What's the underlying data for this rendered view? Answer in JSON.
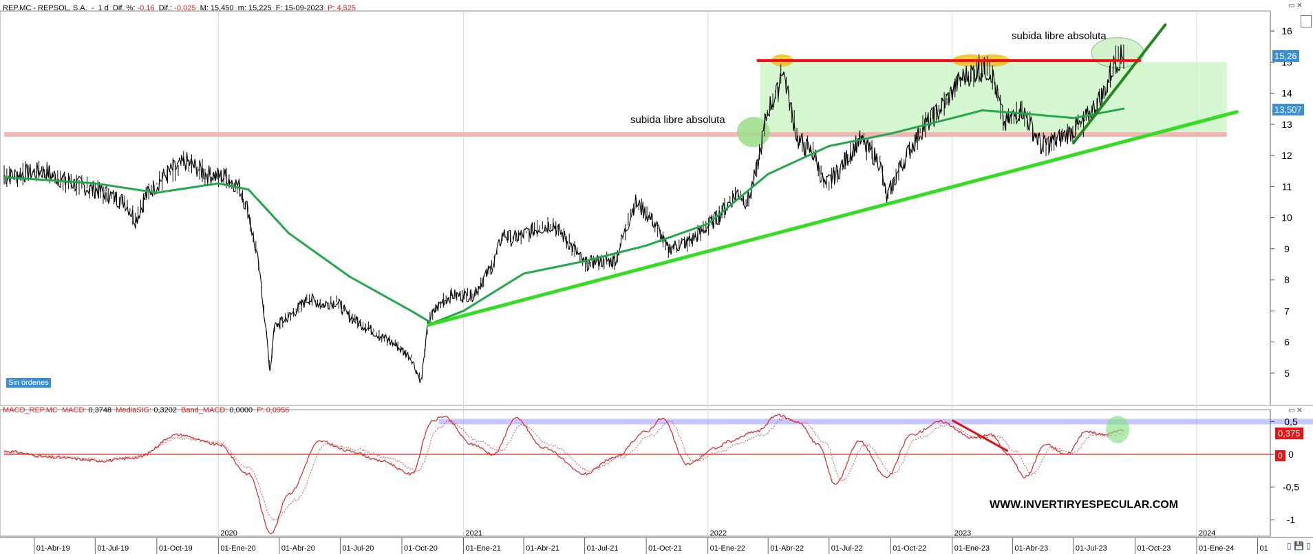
{
  "main_header": {
    "symbol": "REP.MC - REPSOL, S.A.",
    "interval": "1 d",
    "dif_pct_label": "Dif. %:",
    "dif_pct": "-0,16",
    "dif_label": "Dif.:",
    "dif": "-0,025",
    "max_label": "M:",
    "max": "15,450",
    "min_label": "m:",
    "min": "15,225",
    "date_label": "F:",
    "date": "15-09-2023",
    "p_label": "P:",
    "p": "4,525"
  },
  "macd_header": {
    "name": "MACD_REP.MC",
    "macd_label": "MACD:",
    "macd": "0,3748",
    "signal_label": "MediaSIG:",
    "signal": "0,3202",
    "band_label": "Band_MACD:",
    "band": "0,0000",
    "p_label": "P:",
    "p": "0,0956"
  },
  "badges": {
    "sin_ordenes": "Sin órdenes",
    "price_current": "15,26",
    "price_ma": "13,507",
    "macd_current": "0,375",
    "macd_zero": "0"
  },
  "annotations": {
    "left": "subida libre absoluta",
    "right": "subida libre absoluta",
    "website": "WWW.INVERTIRYESPECULAR.COM"
  },
  "colors": {
    "price": "#000000",
    "sma": "#22a84a",
    "support_trend": "#33dd22",
    "steep_trend": "#1e8a1e",
    "resistance": "#ee1111",
    "support_band": "#f5aaaa",
    "range_box": "#c8f5c0",
    "macd_line": "#dd2222",
    "macd_band": "#9999ff",
    "badge_blue": "#3a8fd9",
    "badge_red": "#ee1111"
  },
  "chart_data": [
    {
      "type": "line",
      "subtype": "candlestick",
      "ylim": [
        4,
        16.6
      ],
      "yticks": [
        5,
        6,
        7,
        8,
        9,
        10,
        11,
        12,
        13,
        14,
        15,
        16
      ],
      "ytick_labels": [
        "5",
        "6",
        "7",
        "8",
        "9",
        "10",
        "11",
        "12",
        "13",
        "14",
        "15",
        "16"
      ],
      "xticks": [
        {
          "date": "2019-04-01",
          "label": "01-Abr-19"
        },
        {
          "date": "2019-07-01",
          "label": "01-Jul-19"
        },
        {
          "date": "2019-10-01",
          "label": "01-Oct-19"
        },
        {
          "date": "2020-01-01",
          "label": "01-Ene-20"
        },
        {
          "date": "2020-04-01",
          "label": "01-Abr-20"
        },
        {
          "date": "2020-07-01",
          "label": "01-Jul-20"
        },
        {
          "date": "2020-10-01",
          "label": "01-Oct-20"
        },
        {
          "date": "2021-01-01",
          "label": "01-Ene-21"
        },
        {
          "date": "2021-04-01",
          "label": "01-Abr-21"
        },
        {
          "date": "2021-07-01",
          "label": "01-Jul-21"
        },
        {
          "date": "2021-10-01",
          "label": "01-Oct-21"
        },
        {
          "date": "2022-01-01",
          "label": "01-Ene-22"
        },
        {
          "date": "2022-04-01",
          "label": "01-Abr-22"
        },
        {
          "date": "2022-07-01",
          "label": "01-Jul-22"
        },
        {
          "date": "2022-10-01",
          "label": "01-Oct-22"
        },
        {
          "date": "2023-01-01",
          "label": "01-Ene-23"
        },
        {
          "date": "2023-04-01",
          "label": "01-Abr-23"
        },
        {
          "date": "2023-07-01",
          "label": "01-Jul-23"
        },
        {
          "date": "2023-10-01",
          "label": "01-Oct-23"
        },
        {
          "date": "2024-01-01",
          "label": "01-Ene-24"
        },
        {
          "date": "2024-04-01",
          "label": "01"
        }
      ],
      "year_marks": [
        {
          "date": "2020-01-01",
          "label": "2020"
        },
        {
          "date": "2021-01-01",
          "label": "2021"
        },
        {
          "date": "2022-01-01",
          "label": "2022"
        },
        {
          "date": "2023-01-01",
          "label": "2023"
        },
        {
          "date": "2024-01-01",
          "label": "2024"
        }
      ],
      "x_range": [
        "2019-02-15",
        "2024-04-20"
      ],
      "series": [
        {
          "style": "close",
          "x": [
            "2019-02-15",
            "2019-03-15",
            "2019-04-15",
            "2019-05-15",
            "2019-06-15",
            "2019-07-15",
            "2019-08-15",
            "2019-08-31",
            "2019-09-15",
            "2019-10-15",
            "2019-11-15",
            "2019-12-15",
            "2020-01-15",
            "2020-02-01",
            "2020-02-15",
            "2020-03-01",
            "2020-03-12",
            "2020-03-18",
            "2020-03-25",
            "2020-04-15",
            "2020-05-15",
            "2020-06-05",
            "2020-06-25",
            "2020-07-15",
            "2020-08-15",
            "2020-09-15",
            "2020-10-15",
            "2020-10-30",
            "2020-11-10",
            "2020-11-30",
            "2020-12-15",
            "2021-01-15",
            "2021-02-15",
            "2021-03-01",
            "2021-03-15",
            "2021-04-15",
            "2021-05-15",
            "2021-06-15",
            "2021-07-01",
            "2021-07-20",
            "2021-08-15",
            "2021-09-15",
            "2021-10-15",
            "2021-11-01",
            "2021-11-30",
            "2021-12-15",
            "2022-01-15",
            "2022-02-15",
            "2022-03-01",
            "2022-03-15",
            "2022-04-01",
            "2022-04-15",
            "2022-04-22",
            "2022-05-15",
            "2022-06-10",
            "2022-06-25",
            "2022-07-15",
            "2022-08-15",
            "2022-09-15",
            "2022-09-25",
            "2022-10-15",
            "2022-11-15",
            "2022-12-15",
            "2023-01-15",
            "2023-02-15",
            "2023-03-01",
            "2023-03-20",
            "2023-04-15",
            "2023-05-15",
            "2023-06-15",
            "2023-07-15",
            "2023-08-15",
            "2023-09-01",
            "2023-09-15"
          ],
          "values": [
            11.3,
            11.4,
            11.5,
            11.2,
            11.0,
            10.8,
            10.5,
            9.9,
            10.7,
            11.4,
            11.8,
            11.4,
            11.3,
            11.0,
            10.2,
            8.5,
            6.5,
            5.0,
            6.5,
            6.8,
            7.4,
            7.2,
            7.3,
            6.8,
            6.4,
            6.0,
            5.5,
            4.7,
            6.7,
            7.3,
            7.5,
            7.5,
            8.5,
            9.5,
            9.3,
            9.6,
            9.8,
            9.0,
            8.5,
            8.6,
            8.6,
            10.5,
            9.8,
            9.0,
            9.2,
            9.4,
            10.0,
            10.8,
            10.5,
            11.5,
            13.5,
            14.0,
            14.9,
            12.5,
            12.0,
            11.0,
            11.5,
            12.5,
            11.8,
            10.6,
            11.6,
            12.8,
            13.5,
            14.5,
            14.8,
            14.7,
            13.0,
            13.5,
            12.3,
            12.6,
            13.0,
            14.0,
            15.0,
            15.26
          ]
        },
        {
          "name": "SMA",
          "style": "moving-average",
          "x": [
            "2019-02-15",
            "2019-07-01",
            "2019-10-01",
            "2020-01-01",
            "2020-02-15",
            "2020-04-15",
            "2020-07-15",
            "2020-10-15",
            "2020-11-15",
            "2021-01-01",
            "2021-04-01",
            "2021-07-01",
            "2021-10-01",
            "2022-01-01",
            "2022-04-01",
            "2022-07-01",
            "2022-10-01",
            "2023-01-01",
            "2023-02-15",
            "2023-04-15",
            "2023-07-01",
            "2023-09-15"
          ],
          "values": [
            11.3,
            11.1,
            10.8,
            11.1,
            10.9,
            9.5,
            8.1,
            7.0,
            6.6,
            7.0,
            8.2,
            8.6,
            9.1,
            9.8,
            11.4,
            12.3,
            12.7,
            13.2,
            13.45,
            13.35,
            13.2,
            13.51
          ]
        }
      ],
      "overlays": {
        "support_trendline": {
          "from": [
            "2020-11-10",
            6.55
          ],
          "to": [
            "2024-03-01",
            13.4
          ]
        },
        "steep_trendline": {
          "from": [
            "2023-07-01",
            12.4
          ],
          "to": [
            "2023-11-15",
            16.2
          ]
        },
        "resistance_line": {
          "from": [
            "2022-03-15",
            15.05
          ],
          "to": [
            "2023-10-10",
            15.05
          ]
        },
        "support_band": {
          "from": "2019-02-15",
          "to": "2024-02-15",
          "y": [
            12.6,
            12.75
          ]
        },
        "range_box": {
          "from": "2022-03-20",
          "to": "2024-02-15",
          "y": [
            12.6,
            15.0
          ]
        },
        "highlight_ellipses": [
          {
            "date": "2022-04-22",
            "y": 15.05,
            "fill": "#f0c020"
          },
          {
            "date": "2023-01-28",
            "y": 15.05,
            "fill": "#f0c020"
          },
          {
            "date": "2023-03-01",
            "y": 15.05,
            "fill": "#f0c020"
          },
          {
            "date": "2022-03-10",
            "y": 12.75,
            "fill": "#9bdd88"
          },
          {
            "date": "2023-09-05",
            "y": 15.3,
            "fill": "#c8f0c0"
          }
        ]
      }
    },
    {
      "type": "line",
      "title": "MACD_REP.MC",
      "ylim": [
        -1.25,
        0.62
      ],
      "yticks": [
        -1,
        -0.5,
        0,
        0.5
      ],
      "ytick_labels": [
        "-1",
        "-0,5",
        "0",
        "0,5"
      ],
      "series": [
        {
          "name": "MACD",
          "x": [
            "2019-02-15",
            "2019-05-01",
            "2019-07-15",
            "2019-09-01",
            "2019-11-01",
            "2020-01-01",
            "2020-02-15",
            "2020-03-20",
            "2020-04-15",
            "2020-06-01",
            "2020-07-15",
            "2020-09-01",
            "2020-10-15",
            "2020-11-15",
            "2020-12-01",
            "2021-01-15",
            "2021-02-15",
            "2021-03-20",
            "2021-05-01",
            "2021-07-01",
            "2021-08-15",
            "2021-10-01",
            "2021-10-25",
            "2021-12-01",
            "2022-01-15",
            "2022-02-01",
            "2022-03-15",
            "2022-04-15",
            "2022-05-15",
            "2022-06-15",
            "2022-07-10",
            "2022-08-15",
            "2022-09-25",
            "2022-11-01",
            "2022-12-15",
            "2023-02-01",
            "2023-03-01",
            "2023-03-25",
            "2023-04-20",
            "2023-05-20",
            "2023-06-20",
            "2023-07-20",
            "2023-08-15",
            "2023-09-15"
          ],
          "values": [
            0.05,
            -0.05,
            -0.1,
            -0.05,
            0.3,
            0.15,
            -0.3,
            -1.2,
            -0.6,
            0.2,
            0.05,
            -0.1,
            -0.3,
            0.5,
            0.58,
            0.15,
            0.0,
            0.55,
            0.1,
            -0.3,
            -0.05,
            0.35,
            0.55,
            -0.15,
            0.1,
            0.2,
            0.35,
            0.6,
            0.5,
            0.15,
            -0.45,
            0.2,
            -0.35,
            0.3,
            0.5,
            0.25,
            0.3,
            0.0,
            -0.35,
            0.15,
            0.0,
            0.35,
            0.3,
            0.375
          ]
        },
        {
          "name": "MediaSIG",
          "style": "dotted",
          "x": [
            "2019-02-15",
            "2019-05-01",
            "2019-07-15",
            "2019-09-01",
            "2019-11-01",
            "2020-01-01",
            "2020-02-15",
            "2020-03-25",
            "2020-04-25",
            "2020-06-10",
            "2020-07-25",
            "2020-09-10",
            "2020-10-25",
            "2020-11-25",
            "2020-12-10",
            "2021-01-25",
            "2021-02-25",
            "2021-03-30",
            "2021-05-10",
            "2021-07-10",
            "2021-08-25",
            "2021-10-10",
            "2021-11-05",
            "2021-12-10",
            "2022-01-25",
            "2022-02-10",
            "2022-03-25",
            "2022-04-25",
            "2022-05-25",
            "2022-06-25",
            "2022-07-20",
            "2022-08-25",
            "2022-10-05",
            "2022-11-10",
            "2022-12-25",
            "2023-02-10",
            "2023-03-10",
            "2023-04-05",
            "2023-04-30",
            "2023-05-30",
            "2023-06-30",
            "2023-07-30",
            "2023-08-25",
            "2023-09-15"
          ],
          "values": [
            0.03,
            -0.03,
            -0.08,
            -0.03,
            0.25,
            0.18,
            -0.2,
            -1.0,
            -0.7,
            0.15,
            0.08,
            -0.05,
            -0.25,
            0.4,
            0.5,
            0.2,
            0.05,
            0.45,
            0.15,
            -0.25,
            -0.05,
            0.3,
            0.5,
            -0.1,
            0.05,
            0.15,
            0.3,
            0.55,
            0.48,
            0.18,
            -0.4,
            0.15,
            -0.3,
            0.25,
            0.45,
            0.25,
            0.28,
            0.05,
            -0.3,
            0.1,
            0.02,
            0.3,
            0.28,
            0.32
          ]
        }
      ],
      "overlays": {
        "zero_line": 0,
        "upper_band": 0.5,
        "divergence_line": {
          "from": [
            "2023-01-01",
            0.52
          ],
          "to": [
            "2023-03-25",
            0.05
          ]
        },
        "highlight_circle": {
          "date": "2023-09-05",
          "y": 0.38
        }
      }
    }
  ]
}
